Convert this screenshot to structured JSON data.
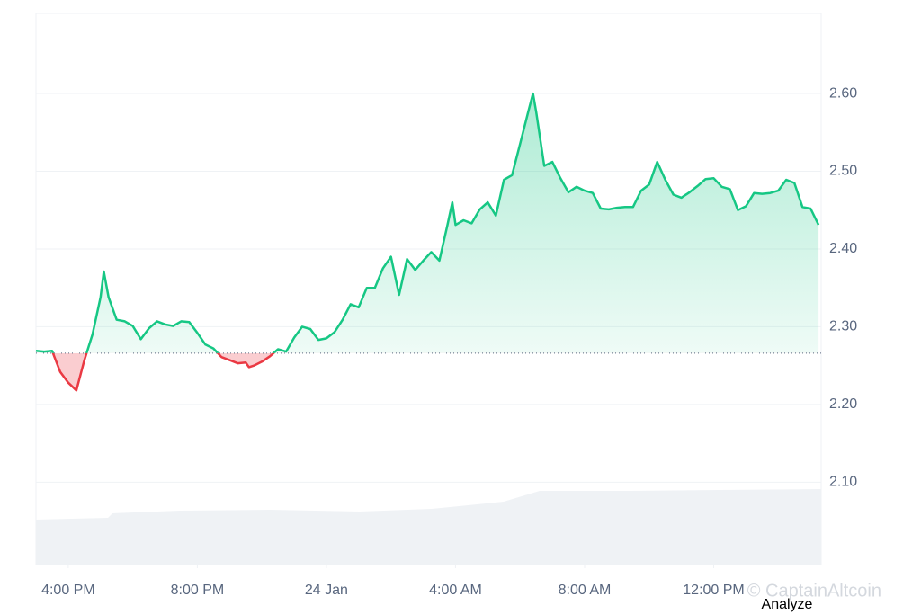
{
  "chart_data": {
    "type": "line",
    "x": [
      15.0,
      15.25,
      15.5,
      15.75,
      16.0,
      16.25,
      16.5,
      16.75,
      17.0,
      17.1,
      17.25,
      17.5,
      17.75,
      18.0,
      18.25,
      18.5,
      18.75,
      19.0,
      19.25,
      19.5,
      19.75,
      20.0,
      20.25,
      20.5,
      20.75,
      21.0,
      21.25,
      21.5,
      21.6,
      21.75,
      22.0,
      22.25,
      22.5,
      22.75,
      23.0,
      23.25,
      23.5,
      23.75,
      24.0,
      24.25,
      24.5,
      24.75,
      25.0,
      25.25,
      25.5,
      25.75,
      26.0,
      26.25,
      26.5,
      26.75,
      27.0,
      27.25,
      27.5,
      27.75,
      27.9,
      28.0,
      28.25,
      28.5,
      28.75,
      29.0,
      29.25,
      29.5,
      29.75,
      30.0,
      30.25,
      30.4,
      30.5,
      30.75,
      31.0,
      31.25,
      31.5,
      31.75,
      32.0,
      32.25,
      32.5,
      32.75,
      33.0,
      33.25,
      33.5,
      33.75,
      34.0,
      34.25,
      34.5,
      34.75,
      35.0,
      35.25,
      35.5,
      35.75,
      36.0,
      36.25,
      36.5,
      36.75,
      37.0,
      37.25,
      37.5,
      37.75,
      38.0,
      38.25,
      38.5,
      38.75,
      39.0,
      39.25
    ],
    "values": [
      2.269,
      2.268,
      2.269,
      2.242,
      2.228,
      2.218,
      2.257,
      2.29,
      2.338,
      2.371,
      2.338,
      2.309,
      2.307,
      2.301,
      2.284,
      2.298,
      2.307,
      2.303,
      2.301,
      2.307,
      2.306,
      2.292,
      2.277,
      2.272,
      2.261,
      2.257,
      2.253,
      2.254,
      2.248,
      2.25,
      2.255,
      2.262,
      2.271,
      2.268,
      2.286,
      2.3,
      2.297,
      2.283,
      2.285,
      2.293,
      2.309,
      2.329,
      2.325,
      2.35,
      2.35,
      2.375,
      2.39,
      2.341,
      2.387,
      2.373,
      2.385,
      2.396,
      2.385,
      2.431,
      2.46,
      2.431,
      2.437,
      2.433,
      2.451,
      2.46,
      2.443,
      2.489,
      2.495,
      2.535,
      2.576,
      2.6,
      2.576,
      2.507,
      2.512,
      2.491,
      2.473,
      2.48,
      2.475,
      2.472,
      2.452,
      2.451,
      2.453,
      2.454,
      2.454,
      2.475,
      2.483,
      2.512,
      2.489,
      2.47,
      2.466,
      2.473,
      2.481,
      2.49,
      2.491,
      2.48,
      2.477,
      2.45,
      2.455,
      2.472,
      2.471,
      2.472,
      2.475,
      2.489,
      2.485,
      2.454,
      2.452,
      2.431
    ],
    "color": "#16c784",
    "color_below": "#ea3943",
    "baseline": 2.266,
    "xlim": [
      15.0,
      39.33
    ],
    "xticks": [
      {
        "value": 16,
        "label": "4:00 PM"
      },
      {
        "value": 20,
        "label": "8:00 PM"
      },
      {
        "value": 24,
        "label": "24 Jan"
      },
      {
        "value": 28,
        "label": "4:00 AM"
      },
      {
        "value": 32,
        "label": "8:00 AM"
      },
      {
        "value": 36,
        "label": "12:00 PM"
      }
    ],
    "ylim": [
      1.994,
      2.703
    ],
    "yticks": [
      {
        "value": 2.1,
        "label": "2.10"
      },
      {
        "value": 2.2,
        "label": "2.20"
      },
      {
        "value": 2.3,
        "label": "2.30"
      },
      {
        "value": 2.4,
        "label": "2.40"
      },
      {
        "value": 2.5,
        "label": "2.50"
      },
      {
        "value": 2.6,
        "label": "2.60"
      }
    ],
    "grid": true
  },
  "watermark": "© CaptainAltcoin",
  "button": "Analyze"
}
